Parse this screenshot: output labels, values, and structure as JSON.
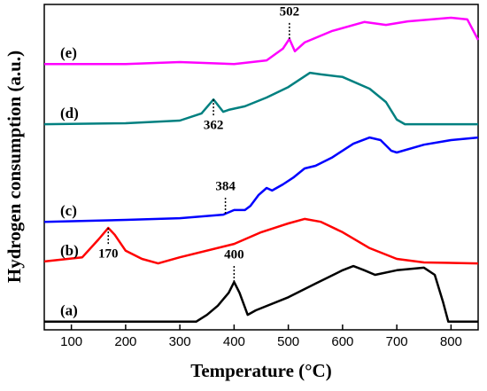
{
  "chart_data": {
    "type": "line",
    "x_label": "Temperature (°C)",
    "y_label": "Hydrogen consumption (a.u.)",
    "xlim": [
      50,
      850
    ],
    "ylim": [
      0,
      100
    ],
    "xticks": [
      100,
      200,
      300,
      400,
      500,
      600,
      700,
      800
    ],
    "series": [
      {
        "name": "(a)",
        "color": "#000000",
        "x": [
          50,
          330,
          350,
          370,
          390,
          400,
          410,
          425,
          440,
          500,
          550,
          600,
          620,
          640,
          660,
          700,
          750,
          770,
          785,
          795,
          850
        ],
        "values": [
          2.5,
          2.5,
          4.6,
          7.4,
          11.4,
          14.7,
          11.4,
          4.6,
          6,
          10,
          14.2,
          18.3,
          19.6,
          18.3,
          16.9,
          18.3,
          19.1,
          16.9,
          8.7,
          2.5,
          2.5
        ],
        "annotation": {
          "text": "400",
          "x": 400,
          "position": "above"
        }
      },
      {
        "name": "(b)",
        "color": "#ff0000",
        "x": [
          50,
          120,
          150,
          168,
          180,
          200,
          230,
          260,
          300,
          400,
          450,
          500,
          530,
          560,
          600,
          650,
          700,
          750,
          850
        ],
        "values": [
          21,
          22.3,
          27.8,
          31.3,
          29.2,
          24.3,
          21.8,
          20.4,
          22.3,
          26.4,
          30,
          32.7,
          34.1,
          33.2,
          30,
          25.1,
          21.8,
          20.7,
          20.4
        ],
        "annotation": {
          "text": "170",
          "x": 168,
          "position": "below"
        }
      },
      {
        "name": "(c)",
        "color": "#0000ff",
        "x": [
          50,
          200,
          300,
          380,
          400,
          420,
          430,
          445,
          460,
          470,
          490,
          510,
          530,
          550,
          580,
          620,
          650,
          670,
          690,
          700,
          750,
          800,
          850
        ],
        "values": [
          33.2,
          33.8,
          34.3,
          35.4,
          36.8,
          36.8,
          38.1,
          41.4,
          43.6,
          42.8,
          44.7,
          46.9,
          49.6,
          50.4,
          52.9,
          57.2,
          59.1,
          58.3,
          55,
          54.5,
          56.9,
          58.3,
          59.1
        ],
        "annotation": {
          "text": "384",
          "x": 384,
          "position": "above"
        }
      },
      {
        "name": "(d)",
        "color": "#008080",
        "x": [
          50,
          200,
          300,
          340,
          362,
          380,
          390,
          420,
          460,
          500,
          540,
          560,
          600,
          650,
          680,
          700,
          715,
          850
        ],
        "values": [
          63.2,
          63.5,
          64.3,
          66.5,
          70.8,
          67,
          67.6,
          68.7,
          71.4,
          74.6,
          79,
          78.5,
          77.7,
          74.1,
          70,
          64.6,
          63.2,
          63.2
        ],
        "annotation": {
          "text": "362",
          "x": 362,
          "position": "below"
        }
      },
      {
        "name": "(e)",
        "color": "#ff00ff",
        "x": [
          50,
          200,
          300,
          400,
          460,
          490,
          502,
          512,
          530,
          580,
          640,
          680,
          720,
          800,
          830,
          850
        ],
        "values": [
          81.7,
          81.7,
          82.3,
          81.7,
          82.8,
          86.4,
          89.4,
          85.6,
          88.3,
          91.8,
          94.6,
          93.7,
          94.8,
          95.9,
          95.4,
          89.1
        ],
        "annotation": {
          "text": "502",
          "x": 502,
          "position": "above"
        }
      }
    ]
  }
}
